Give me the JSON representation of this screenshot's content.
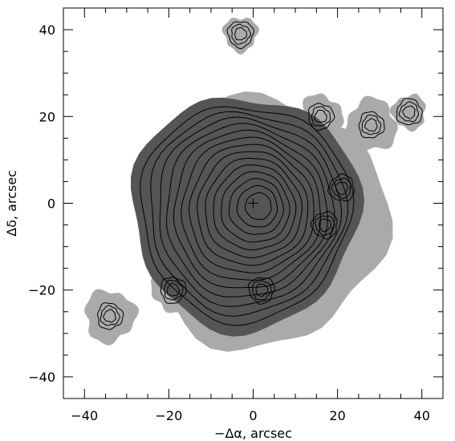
{
  "chart_data": {
    "type": "contour",
    "xlabel": "−Δα, arcsec",
    "ylabel": "Δδ, arcsec",
    "xlim": [
      -45,
      45
    ],
    "ylim": [
      -45,
      45
    ],
    "x_ticks": [
      "−40",
      "−20",
      "0",
      "20",
      "40"
    ],
    "x_tick_values": [
      -40,
      -20,
      0,
      20,
      40
    ],
    "y_ticks": [
      "−40",
      "−20",
      "0",
      "20",
      "40"
    ],
    "y_tick_values": [
      -40,
      -20,
      0,
      20,
      40
    ],
    "center_marker": {
      "symbol": "+",
      "x": 0,
      "y": 0
    },
    "colors": {
      "dark_region": "#555555",
      "light_region": "#aaaaaa",
      "contour": "#000000"
    },
    "main_source": {
      "center": [
        -2,
        -2
      ],
      "dark_extent_radius": 27
    },
    "knots": [
      {
        "x": -3,
        "y": 39
      },
      {
        "x": 16,
        "y": 20
      },
      {
        "x": 28,
        "y": 18
      },
      {
        "x": 37,
        "y": 21
      },
      {
        "x": 21,
        "y": 3.5
      },
      {
        "x": 17,
        "y": -5
      },
      {
        "x": 2,
        "y": -20
      },
      {
        "x": -19,
        "y": -20
      },
      {
        "x": -34,
        "y": -26
      }
    ]
  }
}
